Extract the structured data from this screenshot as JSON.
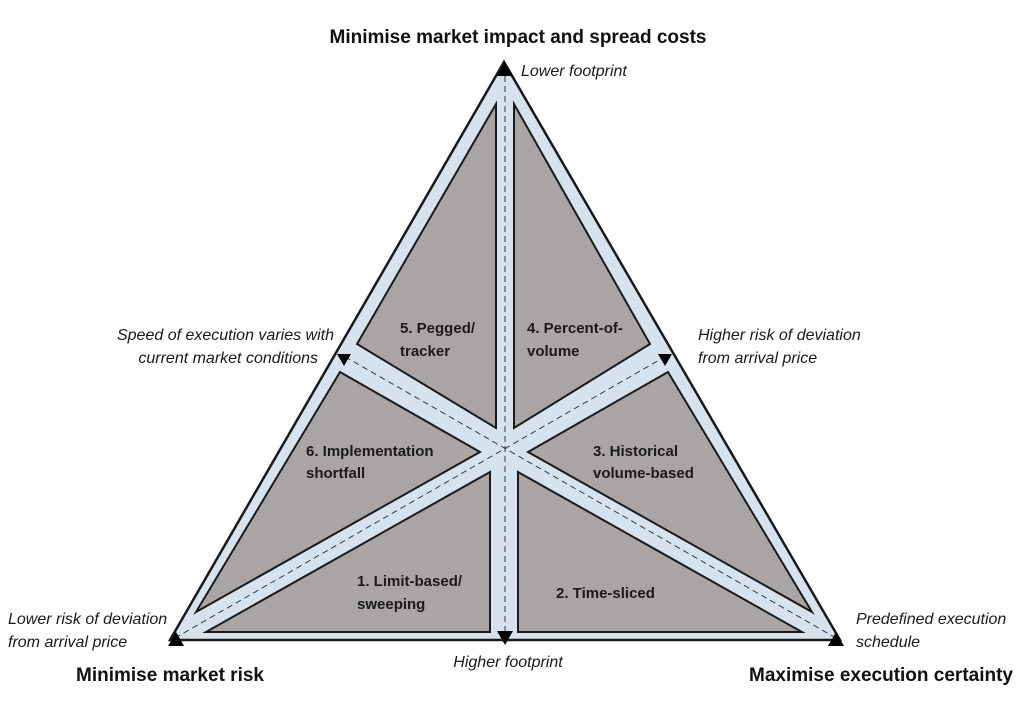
{
  "corners": {
    "top": {
      "title": "Minimise market impact and spread costs",
      "note": "Lower footprint"
    },
    "bottom_left": {
      "title": "Minimise market risk",
      "note_lines": [
        "Lower risk of deviation",
        "from arrival price"
      ]
    },
    "bottom_right": {
      "title": "Maximise execution certainty",
      "note_lines": [
        "Predefined execution",
        "schedule"
      ]
    }
  },
  "midpoints": {
    "left_edge": {
      "note_lines": [
        "Speed of execution varies with",
        "current market conditions"
      ]
    },
    "right_edge": {
      "note_lines": [
        "Higher risk of deviation",
        "from arrival price"
      ]
    },
    "bottom_edge": {
      "note": "Higher footprint"
    }
  },
  "segments": [
    {
      "id": "limit-based",
      "lines": [
        "1. Limit-based/",
        "sweeping"
      ]
    },
    {
      "id": "time-sliced",
      "lines": [
        "2. Time-sliced"
      ]
    },
    {
      "id": "historical-volume",
      "lines": [
        "3. Historical",
        "volume-based"
      ]
    },
    {
      "id": "percent-of-volume",
      "lines": [
        "4. Percent-of-",
        "volume"
      ]
    },
    {
      "id": "pegged-tracker",
      "lines": [
        "5. Pegged/",
        "tracker"
      ]
    },
    {
      "id": "implementation-shortfall",
      "lines": [
        "6. Implementation",
        "shortfall"
      ]
    }
  ],
  "colors": {
    "frame_fill": "#d6e3ef",
    "region_fill": "#aaa5a5",
    "outline": "#1a1a1a"
  }
}
